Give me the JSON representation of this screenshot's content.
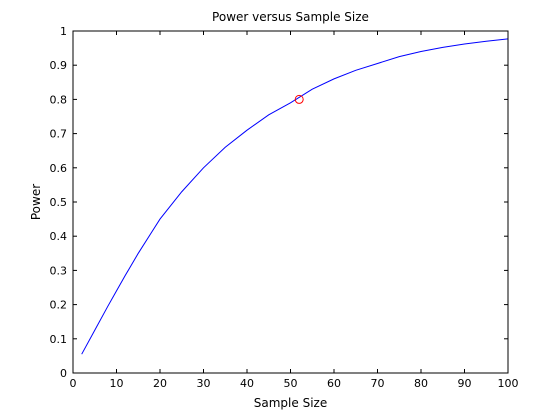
{
  "chart_data": {
    "type": "line",
    "title": "Power versus Sample Size",
    "xlabel": "Sample Size",
    "ylabel": "Power",
    "xlim": [
      0,
      100
    ],
    "ylim": [
      0,
      1
    ],
    "xticks": [
      0,
      10,
      20,
      30,
      40,
      50,
      60,
      70,
      80,
      90,
      100
    ],
    "yticks": [
      0,
      0.1,
      0.2,
      0.3,
      0.4,
      0.5,
      0.6,
      0.7,
      0.8,
      0.9,
      1
    ],
    "xtick_labels": [
      "0",
      "10",
      "20",
      "30",
      "40",
      "50",
      "60",
      "70",
      "80",
      "90",
      "100"
    ],
    "ytick_labels": [
      "0",
      "0.1",
      "0.2",
      "0.3",
      "0.4",
      "0.5",
      "0.6",
      "0.7",
      "0.8",
      "0.9",
      "1"
    ],
    "grid": false,
    "series": [
      {
        "color": "#0000ff",
        "x": [
          2,
          5,
          8,
          10,
          12,
          15,
          18,
          20,
          25,
          30,
          35,
          40,
          45,
          50,
          55,
          60,
          65,
          70,
          75,
          80,
          85,
          90,
          95,
          100
        ],
        "y": [
          0.055,
          0.125,
          0.195,
          0.24,
          0.285,
          0.35,
          0.41,
          0.45,
          0.53,
          0.6,
          0.66,
          0.71,
          0.755,
          0.79,
          0.83,
          0.86,
          0.885,
          0.905,
          0.925,
          0.94,
          0.952,
          0.962,
          0.97,
          0.977
        ]
      }
    ],
    "markers": [
      {
        "shape": "circle",
        "color": "#ff0000",
        "x": 52,
        "y": 0.8
      }
    ]
  }
}
